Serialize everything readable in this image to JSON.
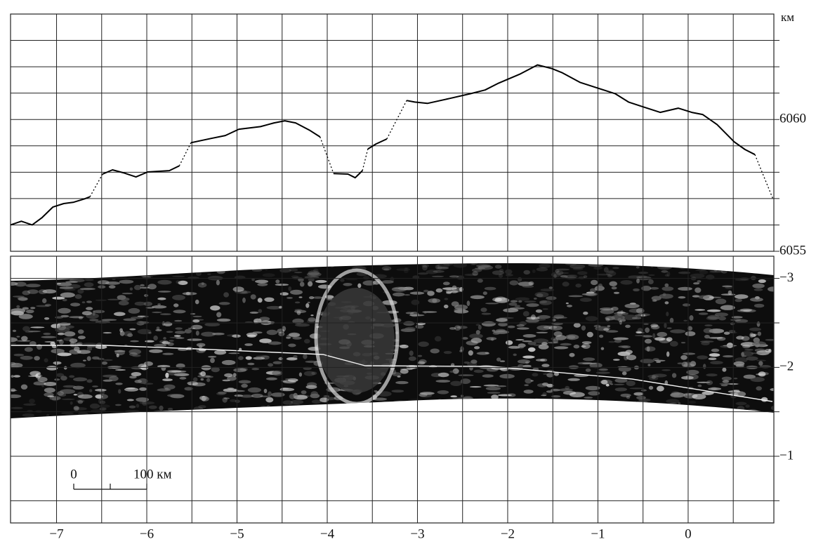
{
  "chart_data": [
    {
      "type": "line",
      "unit": "км",
      "color": "#000",
      "xlim": [
        -7.51,
        0.95
      ],
      "ylim": [
        6055,
        6064
      ],
      "yticks": [
        6055,
        6060
      ],
      "ygrid": [
        6056,
        6057,
        6058,
        6059,
        6061,
        6062,
        6063
      ],
      "xgrid": [
        -7,
        -6.5,
        -6,
        -5.5,
        -5,
        -4.5,
        -4,
        -3.5,
        -3,
        -2.5,
        -2,
        -1.5,
        -1,
        -0.5,
        0,
        0.5
      ],
      "series": [
        {
          "style": "solid",
          "x": [
            -7.51,
            -7.39,
            -7.27,
            -7.16,
            -7.04,
            -6.92,
            -6.81,
            -6.69,
            -6.63
          ],
          "values": [
            6056.0,
            6056.14,
            6056.0,
            6056.28,
            6056.68,
            6056.81,
            6056.86,
            6056.99,
            6057.07
          ]
        },
        {
          "style": "dotted",
          "x": [
            -6.63,
            -6.49
          ],
          "values": [
            6057.07,
            6057.93
          ]
        },
        {
          "style": "solid",
          "x": [
            -6.49,
            -6.38,
            -6.26,
            -6.12,
            -5.99,
            -5.75,
            -5.64
          ],
          "values": [
            6057.93,
            6058.09,
            6057.98,
            6057.82,
            6058.01,
            6058.06,
            6058.24
          ]
        },
        {
          "style": "dotted",
          "x": [
            -5.64,
            -5.51
          ],
          "values": [
            6058.24,
            6059.12
          ]
        },
        {
          "style": "solid",
          "x": [
            -5.51,
            -5.29,
            -5.13,
            -4.98,
            -4.74,
            -4.59,
            -4.47,
            -4.35,
            -4.2,
            -4.08
          ],
          "values": [
            6059.12,
            6059.28,
            6059.39,
            6059.63,
            6059.73,
            6059.87,
            6059.95,
            6059.87,
            6059.6,
            6059.34
          ]
        },
        {
          "style": "dotted",
          "x": [
            -4.08,
            -3.93
          ],
          "values": [
            6059.34,
            6057.95
          ]
        },
        {
          "style": "solid",
          "x": [
            -3.93,
            -3.77,
            -3.69,
            -3.61
          ],
          "values": [
            6057.95,
            6057.93,
            6057.79,
            6058.06
          ]
        },
        {
          "style": "dotted",
          "x": [
            -3.61,
            -3.55
          ],
          "values": [
            6058.06,
            6058.88
          ]
        },
        {
          "style": "solid",
          "x": [
            -3.55,
            -3.46,
            -3.34
          ],
          "values": [
            6058.88,
            6059.07,
            6059.26
          ]
        },
        {
          "style": "dotted",
          "x": [
            -3.34,
            -3.12
          ],
          "values": [
            6059.26,
            6060.72
          ]
        },
        {
          "style": "solid",
          "x": [
            -3.12,
            -3.03,
            -2.89,
            -2.64,
            -2.41,
            -2.25,
            -2.1,
            -1.86,
            -1.67,
            -1.51,
            -1.4,
            -1.2,
            -1.01,
            -0.81,
            -0.66,
            -0.5,
            -0.31,
            -0.11,
            0.04,
            0.16,
            0.32,
            0.51,
            0.63,
            0.74
          ],
          "values": [
            6060.72,
            6060.66,
            6060.61,
            6060.8,
            6060.98,
            6061.12,
            6061.38,
            6061.73,
            6062.07,
            6061.93,
            6061.78,
            6061.41,
            6061.2,
            6060.98,
            6060.66,
            6060.48,
            6060.27,
            6060.43,
            6060.27,
            6060.19,
            6059.81,
            6059.15,
            6058.86,
            6058.67
          ]
        },
        {
          "style": "dotted",
          "x": [
            0.74,
            0.94
          ],
          "values": [
            6058.67,
            6056.99
          ]
        }
      ]
    },
    {
      "type": "image",
      "xlim": [
        -7.51,
        0.95
      ],
      "ylim": [
        -0.25,
        -3.25
      ],
      "xticks": [
        {
          "value": -7,
          "label": "−7"
        },
        {
          "value": -6,
          "label": "−6"
        },
        {
          "value": -5,
          "label": "−5"
        },
        {
          "value": -4,
          "label": "−4"
        },
        {
          "value": -3,
          "label": "−3"
        },
        {
          "value": -2,
          "label": "−2"
        },
        {
          "value": -1,
          "label": "−1"
        },
        0
      ],
      "yticks": [
        {
          "value": -1,
          "label": "−1"
        },
        {
          "value": -2,
          "label": "−2"
        },
        {
          "value": -3,
          "label": "−3"
        }
      ],
      "ygrid": [
        -0.5,
        -1.5,
        -2.5
      ],
      "xgrid": [
        -6.5,
        -5.5,
        -4.5,
        -3.5,
        -2.5,
        -1.5,
        -0.5,
        0.5
      ],
      "scale_bar": [
        "0",
        "100 км"
      ]
    }
  ]
}
